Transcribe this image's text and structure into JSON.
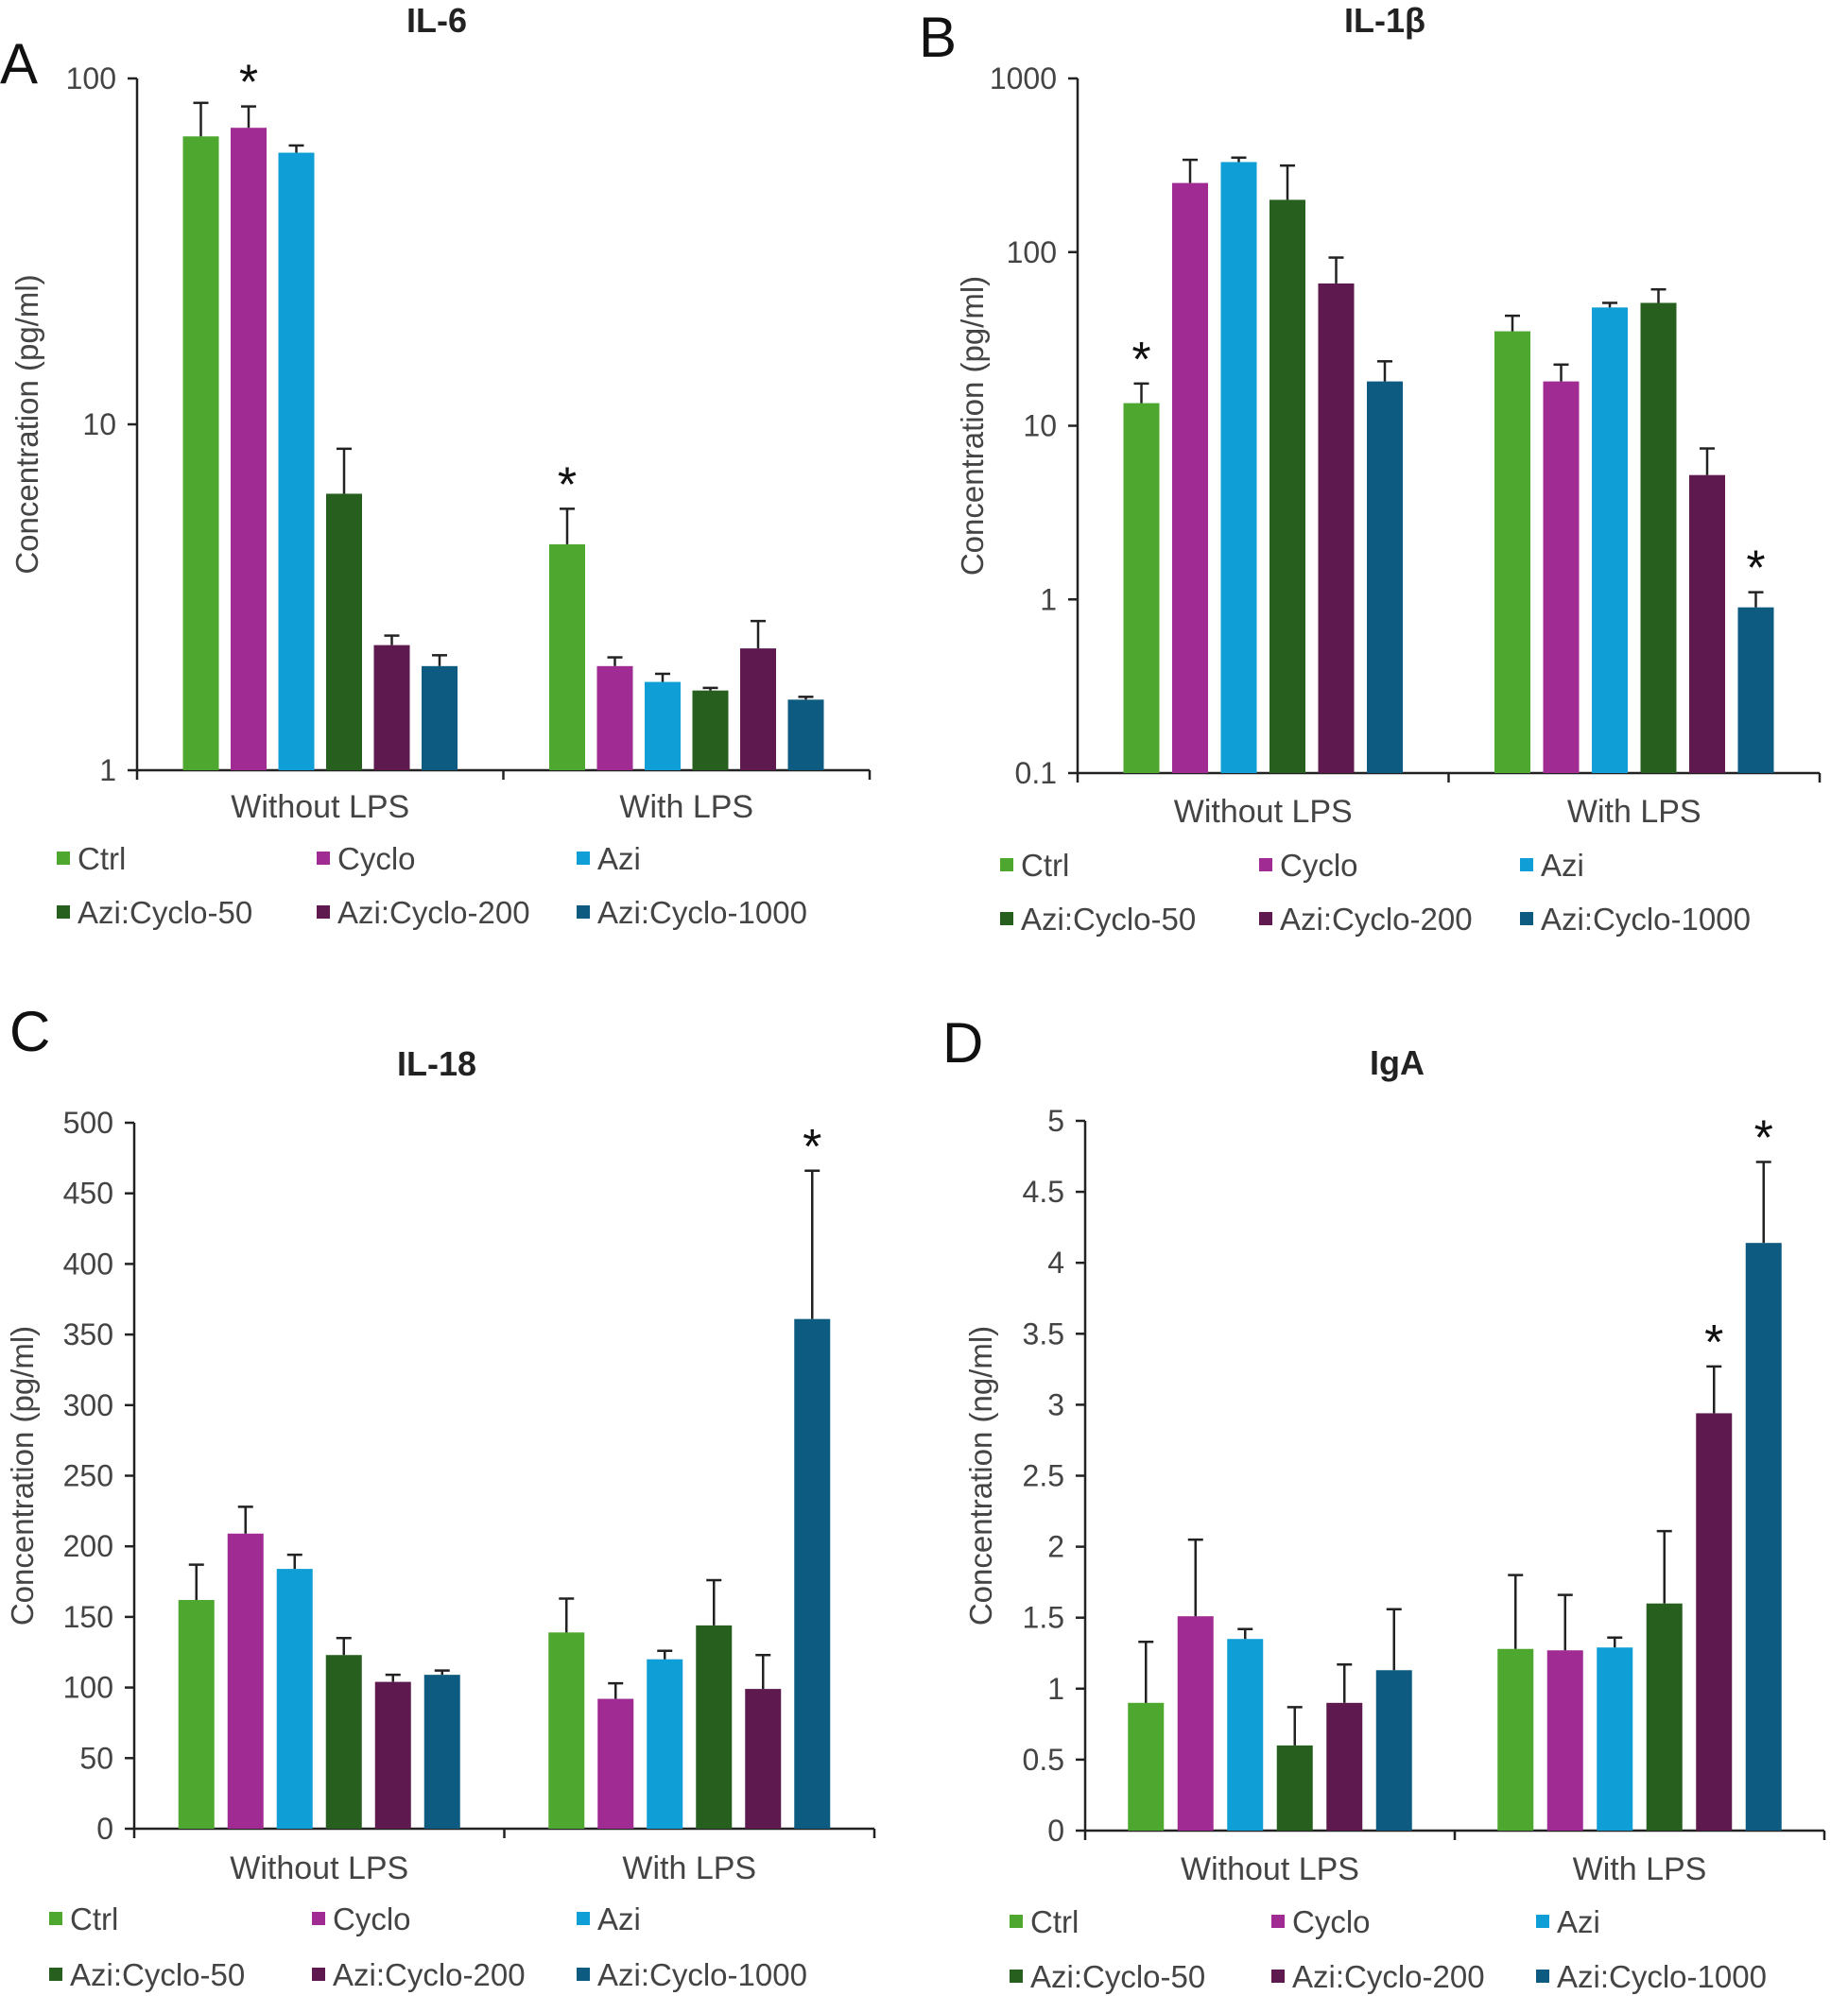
{
  "colors": {
    "Ctrl": "#4ea72e",
    "Cyclo": "#a02b93",
    "Azi": "#0f9ed5",
    "Azi:Cyclo-50": "#265f1e",
    "Azi:Cyclo-200": "#5e1a4f",
    "Azi:Cyclo-1000": "#0d5b80"
  },
  "legend": [
    "Ctrl",
    "Cyclo",
    "Azi",
    "Azi:Cyclo-50",
    "Azi:Cyclo-200",
    "Azi:Cyclo-1000"
  ],
  "chart_data": [
    {
      "panel": "A",
      "type": "bar",
      "title": "IL-6",
      "ylabel": "Concentration (pg/ml)",
      "xlabel": "",
      "scale": "log",
      "ylim": [
        1,
        100
      ],
      "yticks": [
        1,
        10,
        100
      ],
      "ytick_labels": [
        "1",
        "10",
        "100"
      ],
      "categories": [
        "Without LPS",
        "With LPS"
      ],
      "series": [
        {
          "name": "Ctrl",
          "values": [
            68,
            4.5
          ],
          "errors": [
            17,
            1.2
          ],
          "significant": [
            false,
            true
          ]
        },
        {
          "name": "Cyclo",
          "values": [
            72,
            2.0
          ],
          "errors": [
            11,
            0.12
          ],
          "significant": [
            true,
            false
          ]
        },
        {
          "name": "Azi",
          "values": [
            61,
            1.8
          ],
          "errors": [
            3,
            0.1
          ],
          "significant": [
            false,
            false
          ]
        },
        {
          "name": "Azi:Cyclo-50",
          "values": [
            6.3,
            1.7
          ],
          "errors": [
            2.2,
            0.03
          ],
          "significant": [
            false,
            false
          ]
        },
        {
          "name": "Azi:Cyclo-200",
          "values": [
            2.3,
            2.25
          ],
          "errors": [
            0.15,
            0.45
          ],
          "significant": [
            false,
            false
          ]
        },
        {
          "name": "Azi:Cyclo-1000",
          "values": [
            2.0,
            1.6
          ],
          "errors": [
            0.15,
            0.03
          ],
          "significant": [
            false,
            false
          ]
        }
      ]
    },
    {
      "panel": "B",
      "type": "bar",
      "title": "IL-1β",
      "ylabel": "Concentration (pg/ml)",
      "xlabel": "",
      "scale": "log",
      "ylim": [
        0.1,
        1000
      ],
      "yticks": [
        0.1,
        1,
        10,
        100,
        1000
      ],
      "ytick_labels": [
        "0.1",
        "1",
        "10",
        "100",
        "1000"
      ],
      "categories": [
        "Without LPS",
        "With LPS"
      ],
      "series": [
        {
          "name": "Ctrl",
          "values": [
            13.5,
            35
          ],
          "errors": [
            4,
            8
          ],
          "significant": [
            true,
            false
          ]
        },
        {
          "name": "Cyclo",
          "values": [
            250,
            18
          ],
          "errors": [
            90,
            4.5
          ],
          "significant": [
            false,
            false
          ]
        },
        {
          "name": "Azi",
          "values": [
            330,
            48
          ],
          "errors": [
            20,
            3
          ],
          "significant": [
            false,
            false
          ]
        },
        {
          "name": "Azi:Cyclo-50",
          "values": [
            200,
            51
          ],
          "errors": [
            115,
            10
          ],
          "significant": [
            false,
            false
          ]
        },
        {
          "name": "Azi:Cyclo-200",
          "values": [
            66,
            5.2
          ],
          "errors": [
            27,
            2.2
          ],
          "significant": [
            false,
            false
          ]
        },
        {
          "name": "Azi:Cyclo-1000",
          "values": [
            18,
            0.9
          ],
          "errors": [
            5.5,
            0.2
          ],
          "significant": [
            false,
            true
          ]
        }
      ]
    },
    {
      "panel": "C",
      "type": "bar",
      "title": "IL-18",
      "ylabel": "Concentration (pg/ml)",
      "xlabel": "",
      "scale": "linear",
      "ylim": [
        0,
        500
      ],
      "yticks": [
        0,
        50,
        100,
        150,
        200,
        250,
        300,
        350,
        400,
        450,
        500
      ],
      "ytick_labels": [
        "0",
        "50",
        "100",
        "150",
        "200",
        "250",
        "300",
        "350",
        "400",
        "450",
        "500"
      ],
      "categories": [
        "Without LPS",
        "With LPS"
      ],
      "series": [
        {
          "name": "Ctrl",
          "values": [
            162,
            139
          ],
          "errors": [
            25,
            24
          ],
          "significant": [
            false,
            false
          ]
        },
        {
          "name": "Cyclo",
          "values": [
            209,
            92
          ],
          "errors": [
            19,
            11
          ],
          "significant": [
            false,
            false
          ]
        },
        {
          "name": "Azi",
          "values": [
            184,
            120
          ],
          "errors": [
            10,
            6
          ],
          "significant": [
            false,
            false
          ]
        },
        {
          "name": "Azi:Cyclo-50",
          "values": [
            123,
            144
          ],
          "errors": [
            12,
            32
          ],
          "significant": [
            false,
            false
          ]
        },
        {
          "name": "Azi:Cyclo-200",
          "values": [
            104,
            99
          ],
          "errors": [
            5,
            24
          ],
          "significant": [
            false,
            false
          ]
        },
        {
          "name": "Azi:Cyclo-1000",
          "values": [
            109,
            361
          ],
          "errors": [
            3,
            105
          ],
          "significant": [
            false,
            true
          ]
        }
      ]
    },
    {
      "panel": "D",
      "type": "bar",
      "title": "IgA",
      "ylabel": "Concentration (ng/ml)",
      "xlabel": "",
      "scale": "linear",
      "ylim": [
        0,
        5
      ],
      "yticks": [
        0,
        0.5,
        1,
        1.5,
        2,
        2.5,
        3,
        3.5,
        4,
        4.5,
        5
      ],
      "ytick_labels": [
        "0",
        "0.5",
        "1",
        "1.5",
        "2",
        "2.5",
        "3",
        "3.5",
        "4",
        "4.5",
        "5"
      ],
      "categories": [
        "Without LPS",
        "With LPS"
      ],
      "series": [
        {
          "name": "Ctrl",
          "values": [
            0.9,
            1.28
          ],
          "errors": [
            0.43,
            0.52
          ],
          "significant": [
            false,
            false
          ]
        },
        {
          "name": "Cyclo",
          "values": [
            1.51,
            1.27
          ],
          "errors": [
            0.54,
            0.39
          ],
          "significant": [
            false,
            false
          ]
        },
        {
          "name": "Azi",
          "values": [
            1.35,
            1.29
          ],
          "errors": [
            0.07,
            0.07
          ],
          "significant": [
            false,
            false
          ]
        },
        {
          "name": "Azi:Cyclo-50",
          "values": [
            0.6,
            1.6
          ],
          "errors": [
            0.27,
            0.51
          ],
          "significant": [
            false,
            false
          ]
        },
        {
          "name": "Azi:Cyclo-200",
          "values": [
            0.9,
            2.94
          ],
          "errors": [
            0.27,
            0.33
          ],
          "significant": [
            false,
            true
          ]
        },
        {
          "name": "Azi:Cyclo-1000",
          "values": [
            1.13,
            4.14
          ],
          "errors": [
            0.43,
            0.57
          ],
          "significant": [
            false,
            true
          ]
        }
      ]
    }
  ]
}
